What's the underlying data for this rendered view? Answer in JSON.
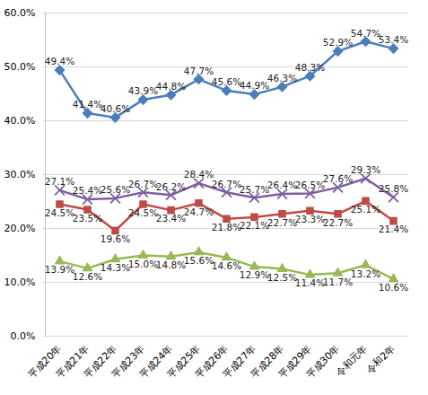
{
  "chart_data": {
    "type": "line",
    "categories": [
      "平成20年",
      "平成21年",
      "平成22年",
      "平成23年",
      "平成24年",
      "平成25年",
      "平成26年",
      "平成27年",
      "平成28年",
      "平成29年",
      "平成30年",
      "令和元年",
      "令和2年"
    ],
    "series": [
      {
        "color": "#4a7ebb",
        "marker": "diamond",
        "values": [
          49.4,
          41.4,
          40.6,
          43.9,
          44.8,
          47.7,
          45.6,
          44.9,
          46.3,
          48.3,
          52.9,
          54.7,
          53.4
        ],
        "value_labels": [
          "49.4%",
          "41.4%",
          "40.6%",
          "43.9%",
          "44.8%",
          "47.7%",
          "45.6%",
          "44.9%",
          "46.3%",
          "48.3%",
          "52.9%",
          "54.7%",
          "53.4%"
        ]
      },
      {
        "color": "#7e5fa1",
        "marker": "x",
        "values": [
          27.1,
          25.4,
          25.6,
          26.7,
          26.2,
          28.4,
          26.7,
          25.7,
          26.4,
          26.5,
          27.6,
          29.3,
          25.8
        ],
        "value_labels": [
          "27.1%",
          "25.4%",
          "25.6%",
          "26.7%",
          "26.2%",
          "28.4%",
          "26.7%",
          "25.7%",
          "26.4%",
          "26.5%",
          "27.6%",
          "29.3%",
          "25.8%"
        ]
      },
      {
        "color": "#be4b48",
        "marker": "square",
        "values": [
          24.5,
          23.5,
          19.6,
          24.5,
          23.4,
          24.7,
          21.8,
          22.1,
          22.7,
          23.3,
          22.7,
          25.1,
          21.4
        ],
        "value_labels": [
          "24.5%",
          "23.5%",
          "19.6%",
          "24.5%",
          "23.4%",
          "24.7%",
          "21.8%",
          "22.1%",
          "22.7%",
          "23.3%",
          "22.7%",
          "25.1%",
          "21.4%"
        ]
      },
      {
        "color": "#98b954",
        "marker": "triangle",
        "values": [
          13.9,
          12.6,
          14.3,
          15.0,
          14.8,
          15.6,
          14.6,
          12.9,
          12.5,
          11.4,
          11.7,
          13.2,
          10.6
        ],
        "value_labels": [
          "13.9%",
          "12.6%",
          "14.3%",
          "15.0%",
          "14.8%",
          "15.6%",
          "14.6%",
          "12.9%",
          "12.5%",
          "11.4%",
          "11.7%",
          "13.2%",
          "10.6%"
        ]
      }
    ],
    "ylim": [
      0,
      60
    ],
    "yticks": [
      {
        "value": 0,
        "label": "0.0%"
      },
      {
        "value": 10,
        "label": "10.0%"
      },
      {
        "value": 20,
        "label": "20.0%"
      },
      {
        "value": 30,
        "label": "30.0%"
      },
      {
        "value": 40,
        "label": "40.0%"
      },
      {
        "value": 50,
        "label": "50.0%"
      },
      {
        "value": 60,
        "label": "60.0%"
      }
    ],
    "grid": true,
    "data_labels": true
  }
}
